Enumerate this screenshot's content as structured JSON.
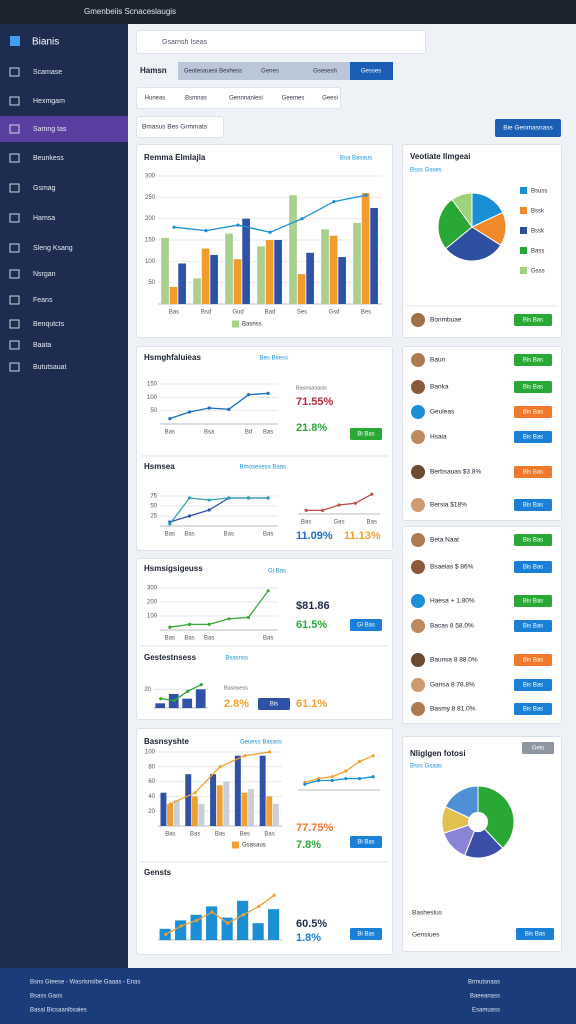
{
  "topbar": {
    "title": "Gmenbeiis Scnaceslaugis"
  },
  "sidebar": {
    "brand": "Bianis",
    "items": [
      "Scamase",
      "Hexmgam",
      "Samng tas",
      "Beunkess",
      "Gsmag",
      "Hamsa",
      "Sleng Ksang",
      "Nsrgan",
      "Feans",
      "Benqutcts",
      "Baata",
      "Bututsauat"
    ]
  },
  "search": {
    "placeholder": "Gsarnsh Iseas"
  },
  "tabs": {
    "label": "Hamsn",
    "items": [
      "Geotesauesi Bexhess",
      "Genes",
      "Gsesesh",
      "Gesses"
    ]
  },
  "filters": [
    "Huneas",
    "Bsmnas",
    "Gennnanlesi",
    "Geemes",
    "Geesi"
  ],
  "action_row": {
    "label": "Bmasus Bes Grmmats",
    "button": "Bie Genmasnass"
  },
  "pie_footer": {
    "name": "Bonmbuae",
    "button": "Bis Bas"
  },
  "people": [
    {
      "name": "Baun",
      "button": "Bis Bas",
      "color": "#2aa836"
    },
    {
      "name": "Banka",
      "button": "Bis Bas",
      "color": "#2aa836"
    },
    {
      "name": "Geuleas",
      "button": "Bis Bas",
      "color": "#f0782a"
    },
    {
      "name": "Hsaia",
      "button": "Bis Bas",
      "color": "#1a7fd6"
    },
    {
      "name": "Berbsauas $3.8%",
      "button": "Bis Bas",
      "color": "#f0782a"
    },
    {
      "name": "Bersia $18%",
      "button": "Bis Bas",
      "color": "#1a7fd6"
    },
    {
      "name": "Beta Naat",
      "button": "Bis Bas",
      "color": "#2aa836"
    },
    {
      "name": "Bsaeias $ 86%",
      "button": "Bis Bas",
      "color": "#1a7fd6"
    },
    {
      "name": "Haesa + 1.80%",
      "button": "Bis Bas",
      "color": "#2aa836"
    },
    {
      "name": "Bacas 8 58.0%",
      "button": "Bis Bas",
      "color": "#1a7fd6"
    },
    {
      "name": "Baunsa 8 88.0%",
      "button": "Bis Bas",
      "color": "#f0782a"
    },
    {
      "name": "Gansa 8 78.8%",
      "button": "Bis Bas",
      "color": "#1a7fd6"
    },
    {
      "name": "Basmy 8 81.0%",
      "button": "Bis Bas",
      "color": "#1a7fd6"
    }
  ],
  "footer": {
    "left": [
      "Bsns Gteese - Wasrlsnslbe Gaaas - Enas",
      "Bsass Gaos",
      "Basal Bicsaanlbsaies"
    ],
    "right": [
      "Brmutsnaas",
      "Baeeanass",
      "Esamuass"
    ]
  },
  "chart_data": [
    {
      "type": "bar",
      "title": "Remma Elmlajla",
      "subtitle": "Bsa Basaus",
      "categories": [
        "Bas",
        "Bsd",
        "Gud",
        "Bad",
        "Ses",
        "Gsd",
        "Bes"
      ],
      "ylim": [
        0,
        300
      ],
      "yticks": [
        50,
        100,
        150,
        200,
        250,
        300
      ],
      "grid": true,
      "series": [
        {
          "name": "Basnss",
          "color": "#a9d18e",
          "values": [
            155,
            60,
            165,
            135,
            255,
            175,
            190
          ]
        },
        {
          "color": "#f29b30",
          "values": [
            40,
            130,
            105,
            150,
            70,
            160,
            260
          ]
        },
        {
          "color": "#2f52a8",
          "values": [
            95,
            115,
            200,
            150,
            120,
            110,
            225
          ]
        },
        {
          "type": "line",
          "color": "#1a8fd6",
          "values": [
            180,
            172,
            185,
            168,
            200,
            240,
            255
          ]
        }
      ]
    },
    {
      "type": "pie",
      "title": "Veotiate Ilmgeai",
      "subtitle": "Bsss Gsses",
      "categories": [
        "Bsuss",
        "Bssk",
        "Bssk",
        "Bass",
        "Gsss"
      ],
      "values": [
        18,
        16,
        30,
        26,
        10
      ],
      "colors": [
        "#1a8fd6",
        "#f0892a",
        "#2f4fa0",
        "#2aa836",
        "#9fd27a"
      ]
    },
    {
      "type": "line",
      "title": "Hsmghfaluieas",
      "subtitle": "Bes Bsess",
      "categories": [
        "Bas",
        null,
        "Bsa",
        null,
        "Bd",
        "Bas"
      ],
      "ylim": [
        0,
        150
      ],
      "yticks": [
        50,
        100,
        150
      ],
      "series": [
        {
          "color": "#1f6fc0",
          "values": [
            20,
            45,
            60,
            55,
            110,
            115
          ]
        }
      ],
      "stats_label": "Basnsasasis",
      "stats": [
        {
          "text": "71.55%",
          "color": "#c0263a"
        },
        {
          "text": "21.8%",
          "color": "#2aa836"
        }
      ],
      "button": {
        "text": "Bi Bas",
        "color": "#2aa836"
      }
    },
    {
      "type": "line",
      "title": "Hsmsea",
      "subtitle": "Bmosesess Baas",
      "categories": [
        "Bas",
        "Bas",
        null,
        "Bas",
        null,
        "Bas"
      ],
      "ylim": [
        0,
        100
      ],
      "yticks": [
        25,
        50,
        75
      ],
      "series": [
        {
          "color": "#2f52a8",
          "values": [
            10,
            25,
            40,
            70,
            70,
            70
          ]
        },
        {
          "color": "#31a0b5",
          "values": [
            5,
            70,
            65,
            70,
            70,
            70
          ]
        }
      ],
      "stats": [
        {
          "text": "11.09%",
          "color": "#1f6fc0"
        },
        {
          "text": "11.13%",
          "color": "#f0a030"
        }
      ]
    },
    {
      "type": "line",
      "categories": [
        "Bas",
        null,
        "Gas",
        null,
        "Bas"
      ],
      "ylim": [
        0,
        100
      ],
      "series": [
        {
          "color": "#c0504d",
          "values": [
            10,
            10,
            25,
            30,
            55
          ]
        }
      ]
    },
    {
      "type": "line",
      "title": "Hsmsigsigeuss",
      "subtitle": "Gi Bas",
      "categories": [
        "Bas",
        "Bas",
        "Bas",
        null,
        null,
        "Bas"
      ],
      "ylim": [
        0,
        300
      ],
      "yticks": [
        100,
        200,
        300
      ],
      "series": [
        {
          "color": "#3aa83a",
          "values": [
            20,
            40,
            40,
            80,
            90,
            280
          ]
        }
      ],
      "stats": [
        {
          "text": "$81.86",
          "color": "#1e2d4f"
        },
        {
          "text": "61.5%",
          "color": "#2aa836"
        }
      ],
      "button": {
        "text": "Gi Bas",
        "color": "#1a7fd6"
      }
    },
    {
      "type": "bar",
      "title": "Gestestnsess",
      "subtitle": "Bsasnss",
      "ylim": [
        0,
        30
      ],
      "yticks": [
        20
      ],
      "series": [
        {
          "color": "#2f52a8",
          "values": [
            5,
            15,
            10,
            20
          ]
        },
        {
          "type": "line",
          "color": "#2aa836",
          "values": [
            10,
            8,
            18,
            25
          ]
        }
      ],
      "stats_label": "Basnsess",
      "stats": [
        {
          "text": "2.8%",
          "color": "#f0a030"
        },
        {
          "text": "61.1%",
          "color": "#f0a030"
        }
      ],
      "button": {
        "text": "Bis",
        "color": "#2f52a8"
      }
    },
    {
      "type": "bar",
      "title": "Basnsyshte",
      "subtitle": "Geuess Basass",
      "categories": [
        "Bas",
        "Bas",
        "Bas",
        "Bes",
        "Bas"
      ],
      "ylim": [
        0,
        100
      ],
      "yticks": [
        20,
        40,
        60,
        80,
        100
      ],
      "series": [
        {
          "color": "#2f52a8",
          "values": [
            45,
            70,
            70,
            95,
            95
          ]
        },
        {
          "name": "Gsasaus",
          "color": "#f0a030",
          "values": [
            30,
            40,
            55,
            45,
            40
          ]
        },
        {
          "color": "#c9ced8",
          "values": [
            35,
            30,
            60,
            50,
            30
          ]
        },
        {
          "type": "line",
          "color": "#f0a030",
          "values": [
            30,
            45,
            80,
            95,
            100
          ]
        }
      ]
    },
    {
      "type": "line",
      "ylim": [
        0,
        100
      ],
      "series": [
        {
          "color": "#f0a030",
          "values": [
            20,
            30,
            35,
            50,
            75,
            90
          ]
        },
        {
          "color": "#1a8fd6",
          "values": [
            15,
            25,
            25,
            30,
            30,
            35
          ]
        }
      ],
      "stats": [
        {
          "text": "77.75%",
          "color": "#f0782a"
        },
        {
          "text": "7.8%",
          "color": "#2aa836"
        }
      ],
      "button": {
        "text": "Bi Bas",
        "color": "#1a7fd6"
      }
    },
    {
      "type": "bar",
      "title": "Gensts",
      "ylim": [
        0,
        100
      ],
      "series": [
        {
          "color": "#1a8fd6",
          "values": [
            20,
            35,
            45,
            60,
            40,
            70,
            30,
            55
          ]
        },
        {
          "type": "line",
          "color": "#f0a030",
          "values": [
            10,
            25,
            35,
            50,
            30,
            45,
            60,
            80
          ]
        }
      ],
      "stats": [
        {
          "text": "60.5%",
          "color": "#1e2d4f"
        },
        {
          "text": "1.8%",
          "color": "#1a7fd6"
        }
      ],
      "button": {
        "text": "Bi Bas",
        "color": "#1a7fd6"
      }
    },
    {
      "type": "pie",
      "donut": true,
      "title": "Nliglgen fotosi",
      "subtitle": "Bsss Gsaas",
      "values": [
        38,
        18,
        14,
        12,
        18
      ],
      "colors": [
        "#2aa836",
        "#3c4fa8",
        "#8a84d6",
        "#e0c050",
        "#4f8fd8"
      ],
      "rows": [
        "Basheslus",
        "Gensiues"
      ],
      "button": {
        "text": "Bis Bas",
        "color": "#1a7fd6"
      },
      "top_button": {
        "text": "Geis",
        "color": "#8f96a3"
      }
    }
  ]
}
